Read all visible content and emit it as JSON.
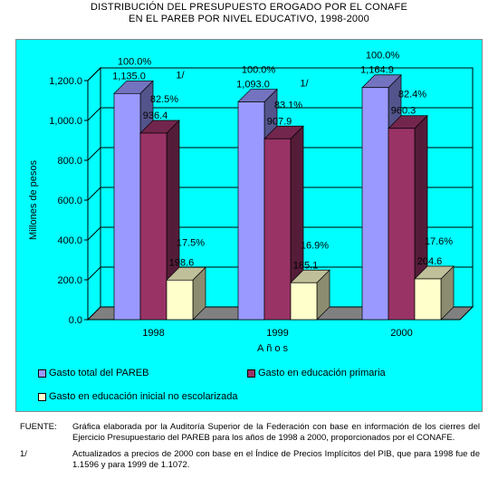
{
  "title": [
    "DISTRIBUCIÓN DEL PRESUPUESTO EROGADO POR EL CONAFE",
    "EN EL PAREB POR NIVEL EDUCATIVO, 1998-2000"
  ],
  "colors": {
    "background": "#00ffff",
    "total": "#9999ff",
    "primaria": "#993366",
    "inicial": "#ffffcc",
    "floor": "#808080"
  },
  "chart_data": {
    "type": "bar",
    "categories": [
      "1998",
      "1999",
      "2000"
    ],
    "xlabel": "Años",
    "ylabel": "Millones de pesos",
    "ylim": [
      0,
      1200
    ],
    "yticks": [
      "0.0",
      "200.0",
      "400.0",
      "600.0",
      "800.0",
      "1,000.0",
      "1,200.0"
    ],
    "series": [
      {
        "name": "Gasto total del PAREB",
        "values": [
          1135.0,
          1093.0,
          1164.9
        ],
        "labels": [
          "1,135.0",
          "1,093.0",
          "1,164.9"
        ],
        "pct": [
          "100.0%",
          "100.0%",
          "100.0%"
        ],
        "note": "1/"
      },
      {
        "name": "Gasto en educación primaria",
        "values": [
          936.4,
          907.9,
          960.3
        ],
        "labels": [
          "936.4",
          "907.9",
          "960.3"
        ],
        "pct": [
          "82.5%",
          "83.1%",
          "82.4%"
        ]
      },
      {
        "name": "Gasto en educación inicial no escolarizada",
        "values": [
          198.6,
          185.1,
          204.6
        ],
        "labels": [
          "198.6",
          "185.1",
          "204.6"
        ],
        "pct": [
          "17.5%",
          "16.9%",
          "17.6%"
        ]
      }
    ],
    "legend_position": "bottom"
  },
  "notes": [
    {
      "key": "FUENTE:",
      "text": "Gráfica elaborada por la Auditoría Superior de la Federación con base en información de los cierres del Ejercicio Presupuestario del PAREB para los años de 1998 a 2000, proporcionados por el CONAFE."
    },
    {
      "key": "1/",
      "text": "Actualizados a precios de 2000 con base en el Índice de Precios Implícitos del PIB, que para 1998 fue de 1.1596 y para 1999 de 1.1072."
    }
  ]
}
